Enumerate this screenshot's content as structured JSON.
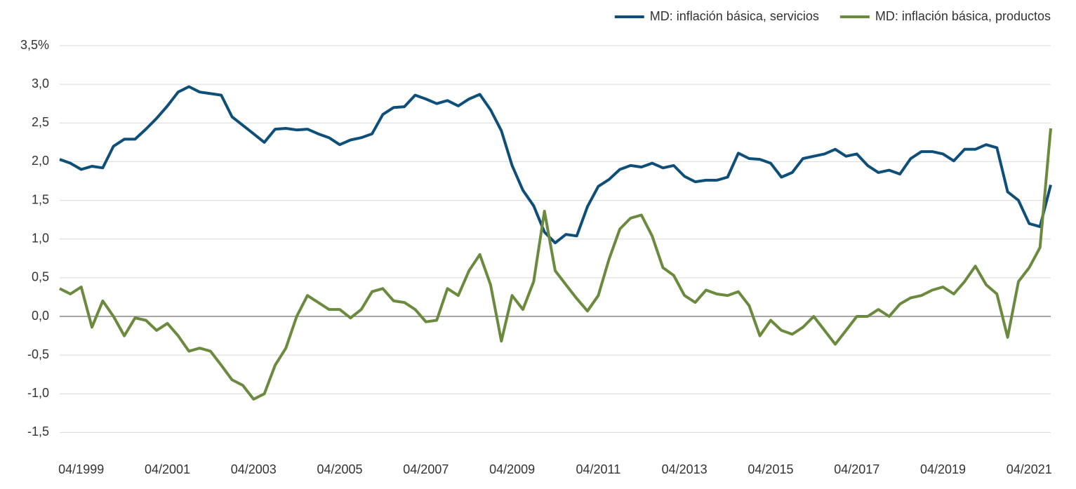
{
  "chart_data": {
    "type": "line",
    "categories": [
      null,
      null,
      "04/1999",
      null,
      null,
      null,
      null,
      null,
      null,
      null,
      "04/2001",
      null,
      null,
      null,
      null,
      null,
      null,
      null,
      "04/2003",
      null,
      null,
      null,
      null,
      null,
      null,
      null,
      "04/2005",
      null,
      null,
      null,
      null,
      null,
      null,
      null,
      "04/2007",
      null,
      null,
      null,
      null,
      null,
      null,
      null,
      "04/2009",
      null,
      null,
      null,
      null,
      null,
      null,
      null,
      "04/2011",
      null,
      null,
      null,
      null,
      null,
      null,
      null,
      "04/2013",
      null,
      null,
      null,
      null,
      null,
      null,
      null,
      "04/2015",
      null,
      null,
      null,
      null,
      null,
      null,
      null,
      "04/2017",
      null,
      null,
      null,
      null,
      null,
      null,
      null,
      "04/2019",
      null,
      null,
      null,
      null,
      null,
      null,
      null,
      "04/2021",
      null,
      null
    ],
    "series": [
      {
        "name": "MD: inflación básica, servicios",
        "color": "#0e4f7a",
        "values": [
          2.03,
          1.98,
          1.9,
          1.94,
          1.92,
          2.2,
          2.29,
          2.29,
          2.42,
          2.56,
          2.72,
          2.9,
          2.97,
          2.9,
          2.88,
          2.86,
          2.58,
          2.47,
          2.36,
          2.25,
          2.42,
          2.43,
          2.41,
          2.42,
          2.36,
          2.31,
          2.22,
          2.28,
          2.31,
          2.36,
          2.61,
          2.7,
          2.71,
          2.86,
          2.81,
          2.75,
          2.79,
          2.72,
          2.81,
          2.87,
          2.67,
          2.4,
          1.95,
          1.63,
          1.43,
          1.09,
          0.95,
          1.06,
          1.04,
          1.42,
          1.68,
          1.77,
          1.9,
          1.95,
          1.93,
          1.98,
          1.92,
          1.95,
          1.81,
          1.74,
          1.76,
          1.76,
          1.8,
          2.11,
          2.04,
          2.03,
          1.98,
          1.8,
          1.86,
          2.04,
          2.07,
          2.1,
          2.16,
          2.07,
          2.1,
          1.95,
          1.86,
          1.89,
          1.84,
          2.04,
          2.13,
          2.13,
          2.1,
          2.01,
          2.16,
          2.16,
          2.22,
          2.18,
          1.61,
          1.5,
          1.2,
          1.16,
          1.7
        ]
      },
      {
        "name": "MD: inflación básica, productos",
        "color": "#6a8a3e",
        "values": [
          0.36,
          0.29,
          0.38,
          -0.14,
          0.2,
          0.0,
          -0.25,
          -0.02,
          -0.05,
          -0.18,
          -0.09,
          -0.25,
          -0.45,
          -0.41,
          -0.45,
          -0.63,
          -0.82,
          -0.89,
          -1.07,
          -1.0,
          -0.63,
          -0.41,
          0.0,
          0.27,
          0.18,
          0.09,
          0.09,
          -0.02,
          0.09,
          0.32,
          0.36,
          0.2,
          0.18,
          0.09,
          -0.07,
          -0.05,
          0.36,
          0.27,
          0.59,
          0.8,
          0.41,
          -0.32,
          0.27,
          0.09,
          0.45,
          1.36,
          0.59,
          0.41,
          0.23,
          0.07,
          0.27,
          0.74,
          1.13,
          1.27,
          1.31,
          1.04,
          0.63,
          0.53,
          0.27,
          0.18,
          0.34,
          0.29,
          0.27,
          0.32,
          0.14,
          -0.25,
          -0.05,
          -0.18,
          -0.23,
          -0.14,
          0.0,
          -0.18,
          -0.36,
          -0.18,
          0.0,
          0.0,
          0.09,
          0.0,
          0.16,
          0.24,
          0.27,
          0.34,
          0.38,
          0.29,
          0.45,
          0.65,
          0.41,
          0.29,
          -0.27,
          0.45,
          0.63,
          0.89,
          2.43
        ]
      }
    ],
    "ylim": [
      -1.75,
      3.5
    ],
    "yticks": [
      {
        "value": 3.5,
        "label": "3,5%"
      },
      {
        "value": 3.0,
        "label": "3,0"
      },
      {
        "value": 2.5,
        "label": "2,5"
      },
      {
        "value": 2.0,
        "label": "2,0"
      },
      {
        "value": 1.5,
        "label": "1,5"
      },
      {
        "value": 1.0,
        "label": "1,0"
      },
      {
        "value": 0.5,
        "label": "0,5"
      },
      {
        "value": 0,
        "label": "0,0"
      },
      {
        "value": -0.5,
        "label": "-0,5"
      },
      {
        "value": -1.0,
        "label": "-1,0"
      },
      {
        "value": -1.5,
        "label": "-1,5"
      }
    ],
    "grid": true,
    "legend": "top-right"
  }
}
